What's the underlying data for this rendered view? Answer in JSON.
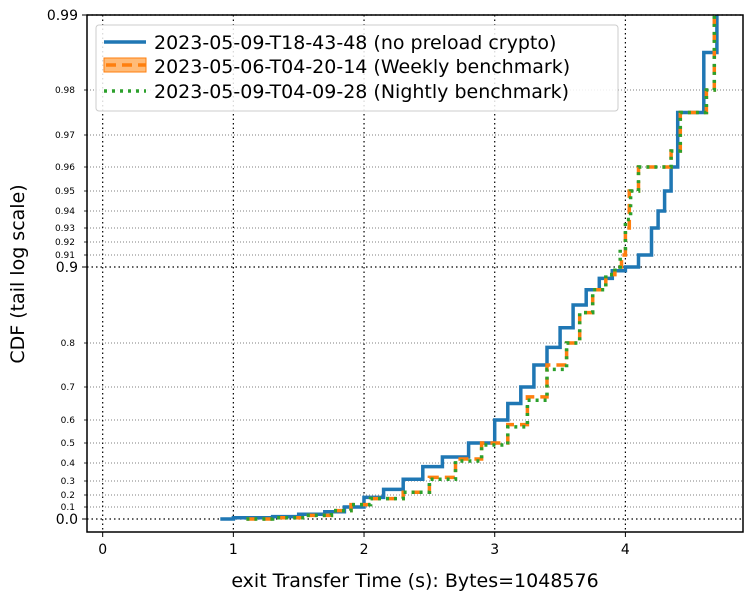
{
  "chart_data": {
    "type": "line",
    "title": "",
    "xlabel": "exit Transfer Time (s): Bytes=1048576",
    "ylabel": "CDF (tail log scale)",
    "xlim": [
      -0.12,
      4.9
    ],
    "x_ticks": [
      0,
      1,
      2,
      3,
      4
    ],
    "y_scale": "tail-log",
    "y_major_ticks": [
      0.0,
      0.9,
      0.99
    ],
    "y_major_labels": [
      "0.0",
      "0.9",
      "0.99"
    ],
    "y_minor_ticks": [
      0.1,
      0.2,
      0.3,
      0.4,
      0.5,
      0.6,
      0.7,
      0.8,
      0.91,
      0.92,
      0.93,
      0.94,
      0.95,
      0.96,
      0.97,
      0.98
    ],
    "y_minor_labels": [
      "0.1",
      "0.2",
      "0.3",
      "0.4",
      "0.5",
      "0.6",
      "0.7",
      "0.8",
      "0.91",
      "0.92",
      "0.93",
      "0.94",
      "0.95",
      "0.96",
      "0.97",
      "0.98"
    ],
    "grid": true,
    "legend_position": "top-left",
    "series": [
      {
        "name": "2023-05-09-T18-43-48 (no preload crypto)",
        "color": "#1f77b4",
        "style": "solid",
        "points": [
          [
            0.9,
            0.0
          ],
          [
            1.0,
            0.01
          ],
          [
            1.3,
            0.02
          ],
          [
            1.5,
            0.04
          ],
          [
            1.7,
            0.06
          ],
          [
            1.85,
            0.1
          ],
          [
            2.0,
            0.18
          ],
          [
            2.15,
            0.24
          ],
          [
            2.3,
            0.31
          ],
          [
            2.45,
            0.38
          ],
          [
            2.6,
            0.43
          ],
          [
            2.8,
            0.5
          ],
          [
            3.0,
            0.6
          ],
          [
            3.1,
            0.65
          ],
          [
            3.2,
            0.7
          ],
          [
            3.3,
            0.75
          ],
          [
            3.4,
            0.79
          ],
          [
            3.5,
            0.82
          ],
          [
            3.6,
            0.85
          ],
          [
            3.7,
            0.87
          ],
          [
            3.8,
            0.885
          ],
          [
            3.9,
            0.895
          ],
          [
            4.0,
            0.9
          ],
          [
            4.1,
            0.91
          ],
          [
            4.2,
            0.93
          ],
          [
            4.25,
            0.94
          ],
          [
            4.3,
            0.95
          ],
          [
            4.35,
            0.96
          ],
          [
            4.4,
            0.975
          ],
          [
            4.6,
            0.985
          ],
          [
            4.7,
            0.99
          ]
        ]
      },
      {
        "name": "2023-05-06-T04-20-14 (Weekly benchmark)",
        "color": "#ff7f0e",
        "style": "dashed",
        "points": [
          [
            1.1,
            0.0
          ],
          [
            1.3,
            0.01
          ],
          [
            1.55,
            0.03
          ],
          [
            1.75,
            0.07
          ],
          [
            1.9,
            0.12
          ],
          [
            2.05,
            0.17
          ],
          [
            2.3,
            0.22
          ],
          [
            2.5,
            0.32
          ],
          [
            2.7,
            0.42
          ],
          [
            2.9,
            0.5
          ],
          [
            3.1,
            0.58
          ],
          [
            3.25,
            0.67
          ],
          [
            3.4,
            0.75
          ],
          [
            3.55,
            0.8
          ],
          [
            3.65,
            0.84
          ],
          [
            3.75,
            0.87
          ],
          [
            3.85,
            0.89
          ],
          [
            3.92,
            0.9
          ],
          [
            3.97,
            0.91
          ],
          [
            4.0,
            0.93
          ],
          [
            4.03,
            0.95
          ],
          [
            4.1,
            0.96
          ],
          [
            4.35,
            0.965
          ],
          [
            4.42,
            0.975
          ],
          [
            4.62,
            0.98
          ],
          [
            4.68,
            0.99
          ]
        ]
      },
      {
        "name": "2023-05-09-T04-09-28 (Nightly benchmark)",
        "color": "#2ca02c",
        "style": "dotted",
        "points": [
          [
            1.1,
            0.0
          ],
          [
            1.3,
            0.01
          ],
          [
            1.55,
            0.03
          ],
          [
            1.75,
            0.07
          ],
          [
            1.9,
            0.12
          ],
          [
            2.05,
            0.17
          ],
          [
            2.3,
            0.22
          ],
          [
            2.5,
            0.31
          ],
          [
            2.7,
            0.41
          ],
          [
            2.9,
            0.49
          ],
          [
            3.1,
            0.57
          ],
          [
            3.25,
            0.66
          ],
          [
            3.4,
            0.74
          ],
          [
            3.55,
            0.8
          ],
          [
            3.65,
            0.84
          ],
          [
            3.75,
            0.87
          ],
          [
            3.85,
            0.89
          ],
          [
            3.92,
            0.9
          ],
          [
            3.96,
            0.915
          ],
          [
            4.0,
            0.935
          ],
          [
            4.04,
            0.95
          ],
          [
            4.1,
            0.96
          ],
          [
            4.35,
            0.965
          ],
          [
            4.42,
            0.975
          ],
          [
            4.62,
            0.98
          ],
          [
            4.68,
            0.99
          ]
        ]
      }
    ]
  }
}
